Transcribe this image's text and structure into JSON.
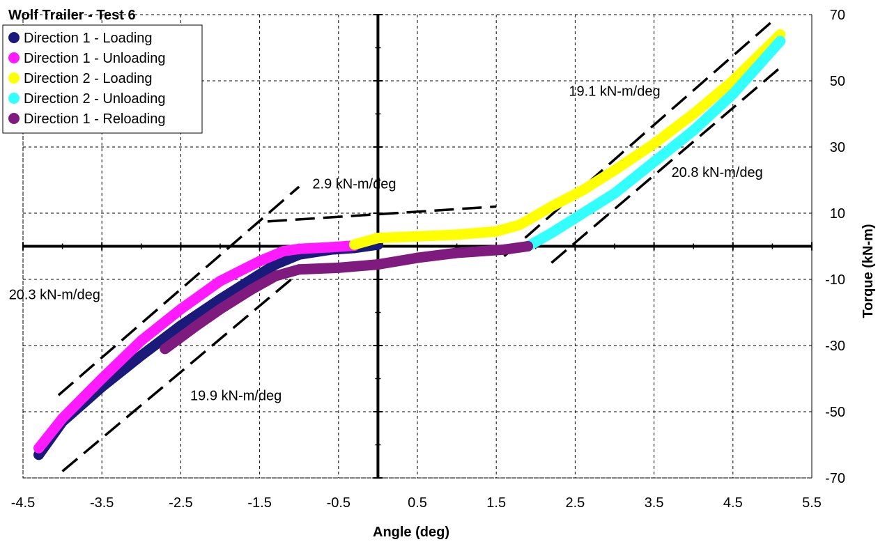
{
  "chart_data": {
    "type": "scatter",
    "title": "Wolf Trailer - Test 6",
    "xlabel": "Angle (deg)",
    "ylabel": "Torque (kN-m)",
    "xlim": [
      -4.5,
      5.5
    ],
    "ylim": [
      -70,
      70
    ],
    "x_ticks": [
      "-4.5",
      "-3.5",
      "-2.5",
      "-1.5",
      "-0.5",
      "0.5",
      "1.5",
      "2.5",
      "3.5",
      "4.5",
      "5.5"
    ],
    "y_ticks": [
      "70",
      "50",
      "30",
      "10",
      "-10",
      "-30",
      "-50",
      "-70"
    ],
    "x_tick_values": [
      -4.5,
      -3.5,
      -2.5,
      -1.5,
      -0.5,
      0.5,
      1.5,
      2.5,
      3.5,
      4.5,
      5.5
    ],
    "y_tick_values": [
      70,
      50,
      30,
      10,
      -10,
      -30,
      -50,
      -70
    ],
    "grid": true,
    "legend_position": "top-left",
    "series": [
      {
        "name": "Direction 1 - Loading",
        "color": "#1a1a7a",
        "points": [
          [
            0.0,
            0.5
          ],
          [
            -0.3,
            -0.5
          ],
          [
            -0.6,
            -1.0
          ],
          [
            -1.0,
            -2.5
          ],
          [
            -1.3,
            -5.5
          ],
          [
            -1.6,
            -10.0
          ],
          [
            -2.0,
            -16.0
          ],
          [
            -2.5,
            -24.0
          ],
          [
            -3.0,
            -33.0
          ],
          [
            -3.5,
            -42.5
          ],
          [
            -4.0,
            -53.0
          ],
          [
            -4.3,
            -63.0
          ]
        ]
      },
      {
        "name": "Direction 1 - Unloading",
        "color": "#ff1aff",
        "points": [
          [
            -4.3,
            -61.0
          ],
          [
            -4.0,
            -52.0
          ],
          [
            -3.5,
            -40.0
          ],
          [
            -3.0,
            -28.5
          ],
          [
            -2.5,
            -19.0
          ],
          [
            -2.0,
            -10.5
          ],
          [
            -1.5,
            -4.5
          ],
          [
            -1.2,
            -1.5
          ],
          [
            -1.0,
            -0.8
          ],
          [
            -0.6,
            -0.3
          ],
          [
            -0.3,
            0.2
          ]
        ]
      },
      {
        "name": "Direction 2 - Loading",
        "color": "#ffff00",
        "points": [
          [
            -0.3,
            0.5
          ],
          [
            0.0,
            2.5
          ],
          [
            0.5,
            3.0
          ],
          [
            1.0,
            3.5
          ],
          [
            1.5,
            4.5
          ],
          [
            1.8,
            6.5
          ],
          [
            2.2,
            12.0
          ],
          [
            2.6,
            17.0
          ],
          [
            3.0,
            23.0
          ],
          [
            3.5,
            31.0
          ],
          [
            4.0,
            40.0
          ],
          [
            4.5,
            50.0
          ],
          [
            5.1,
            64.0
          ]
        ]
      },
      {
        "name": "Direction 2 - Unloading",
        "color": "#33ffff",
        "points": [
          [
            5.1,
            62.0
          ],
          [
            4.8,
            54.0
          ],
          [
            4.5,
            46.0
          ],
          [
            4.0,
            35.0
          ],
          [
            3.5,
            25.5
          ],
          [
            3.0,
            16.0
          ],
          [
            2.5,
            8.5
          ],
          [
            2.2,
            4.0
          ],
          [
            1.9,
            0.0
          ]
        ]
      },
      {
        "name": "Direction 1 - Reloading",
        "color": "#7f1a7f",
        "points": [
          [
            1.9,
            0.0
          ],
          [
            1.6,
            -1.0
          ],
          [
            1.0,
            -2.0
          ],
          [
            0.5,
            -3.5
          ],
          [
            0.0,
            -5.5
          ],
          [
            -0.5,
            -6.5
          ],
          [
            -1.0,
            -7.0
          ],
          [
            -1.3,
            -9.0
          ],
          [
            -1.6,
            -13.0
          ],
          [
            -2.0,
            -19.0
          ],
          [
            -2.3,
            -24.0
          ],
          [
            -2.7,
            -31.0
          ]
        ]
      }
    ],
    "fit_lines": [
      {
        "points": [
          [
            -4.05,
            -45.0
          ],
          [
            -1.0,
            18.0
          ]
        ]
      },
      {
        "points": [
          [
            -1.4,
            7.5
          ],
          [
            1.5,
            12.0
          ]
        ]
      },
      {
        "points": [
          [
            -4.0,
            -68.0
          ],
          [
            -1.0,
            -8.0
          ]
        ]
      },
      {
        "points": [
          [
            1.6,
            -3.0
          ],
          [
            5.0,
            68.0
          ]
        ]
      },
      {
        "points": [
          [
            2.2,
            -5.0
          ],
          [
            5.1,
            54.0
          ]
        ]
      }
    ],
    "annotations": [
      {
        "text": "19.1 kN-m/deg",
        "x": 3.0,
        "y": 45.5
      },
      {
        "text": "20.8 kN-m/deg",
        "x": 4.3,
        "y": 21.0
      },
      {
        "text": "2.9 kN-m/deg",
        "x": -0.3,
        "y": 17.5
      },
      {
        "text": "20.3 kN-m/deg",
        "x": -4.1,
        "y": -16.0
      },
      {
        "text": "19.9 kN-m/deg",
        "x": -1.8,
        "y": -46.5
      }
    ]
  }
}
